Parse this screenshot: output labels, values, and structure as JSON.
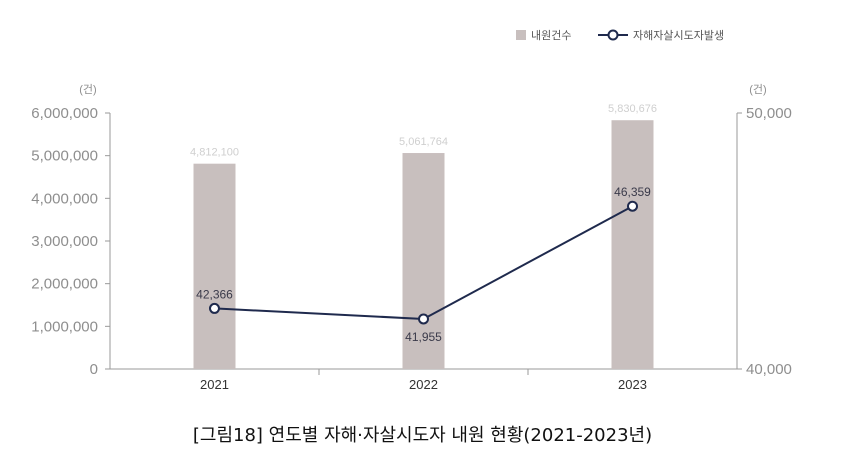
{
  "chart_data": {
    "type": "bar+line",
    "categories": [
      "2021",
      "2022",
      "2023"
    ],
    "series": [
      {
        "name": "내원건수",
        "type": "bar",
        "axis": "left",
        "values": [
          4812100,
          5061764,
          5830676
        ],
        "labels": [
          "4,812,100",
          "5,061,764",
          "5,830,676"
        ],
        "color": "#c8bfbe"
      },
      {
        "name": "자해자살시도자발생",
        "type": "line",
        "axis": "right",
        "values": [
          42366,
          41955,
          46359
        ],
        "labels": [
          "42,366",
          "41,955",
          "46,359"
        ],
        "color": "#1f2a4d"
      }
    ],
    "left_axis": {
      "unit": "(건)",
      "ylim": [
        0,
        6000000
      ],
      "ticks": [
        0,
        1000000,
        2000000,
        3000000,
        4000000,
        5000000,
        6000000
      ],
      "tick_labels": [
        "0",
        "1,000,000",
        "2,000,000",
        "3,000,000",
        "4,000,000",
        "5,000,000",
        "6,000,000"
      ]
    },
    "right_axis": {
      "unit": "(건)",
      "ylim": [
        40000,
        50000
      ],
      "ticks": [
        40000,
        50000
      ],
      "tick_labels": [
        "40,000",
        "50,000"
      ]
    },
    "legend_position": "top-right",
    "caption": "[그림18] 연도별 자해·자살시도자 내원 현황(2021-2023년)"
  }
}
